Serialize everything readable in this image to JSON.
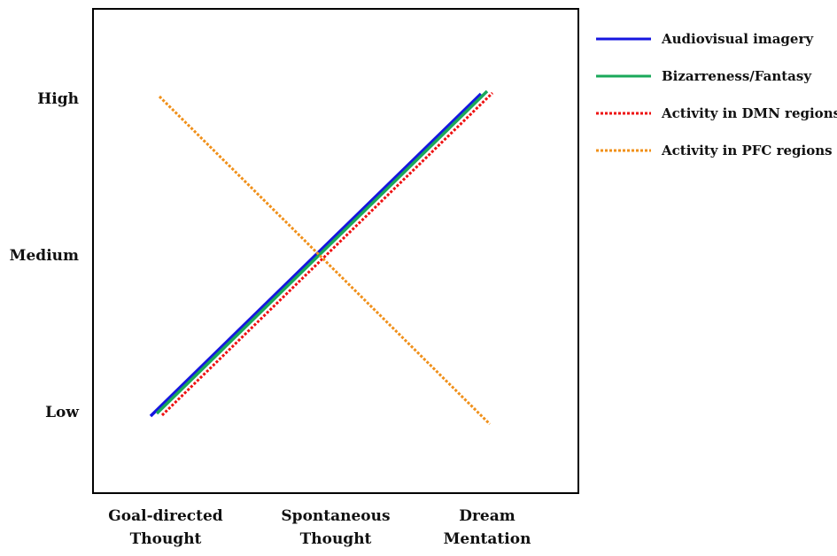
{
  "chart_data": {
    "type": "line",
    "x": [
      "Goal-directed Thought",
      "Spontaneous Thought",
      "Dream Mentation"
    ],
    "x_tick_lines": [
      [
        "Goal-directed",
        "Thought"
      ],
      [
        "Spontaneous",
        "Thought"
      ],
      [
        "Dream",
        "Mentation"
      ]
    ],
    "y_ticks": [
      "Low",
      "Medium",
      "High"
    ],
    "ylim": [
      0,
      2
    ],
    "legend_position": "right",
    "grid": false,
    "series": [
      {
        "name": "Audiovisual imagery",
        "values": [
          0,
          1,
          2
        ],
        "color": "#1515e0",
        "style": "solid"
      },
      {
        "name": "Bizarreness/Fantasy",
        "values": [
          0,
          1,
          2
        ],
        "color": "#1aa85a",
        "style": "solid"
      },
      {
        "name": "Activity in DMN regions",
        "values": [
          0,
          1,
          2
        ],
        "color": "#ee1111",
        "style": "dotted"
      },
      {
        "name": "Activity in PFC regions",
        "values": [
          2,
          1,
          0
        ],
        "color": "#f0901a",
        "style": "dotted"
      }
    ]
  }
}
